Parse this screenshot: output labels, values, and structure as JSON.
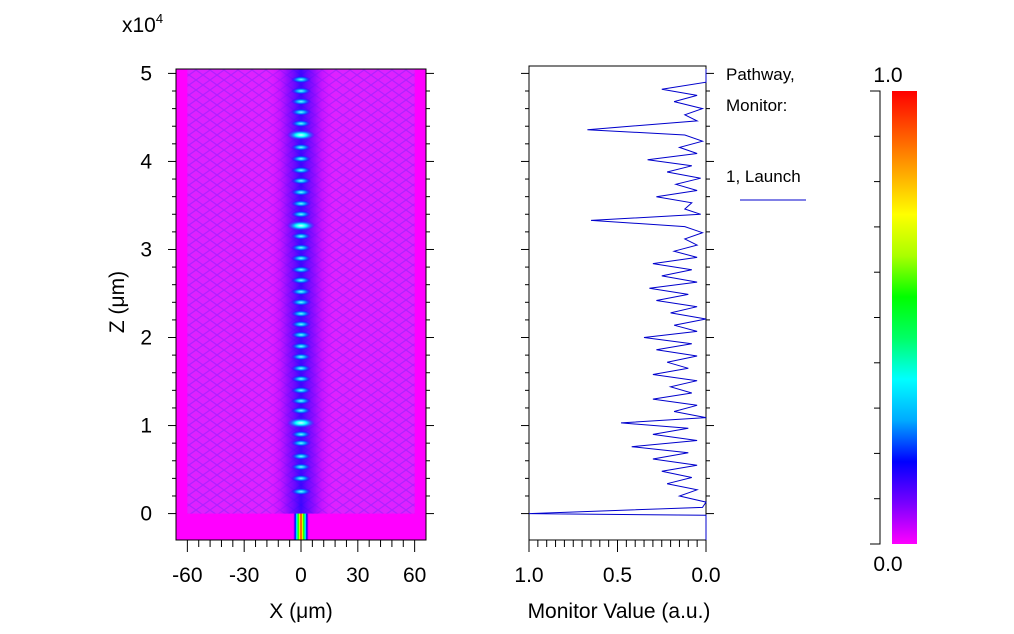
{
  "chart_data": [
    {
      "type": "heatmap",
      "title": "",
      "xlabel": "X (μm)",
      "ylabel": "Z (μm)",
      "y_multiplier": "x10",
      "y_multiplier_exp": "4",
      "xlim": [
        -66,
        66
      ],
      "ylim": [
        -3000,
        50500
      ],
      "xticks": [
        "-60",
        "-30",
        "0",
        "30",
        "60"
      ],
      "xtick_values": [
        -60,
        -30,
        0,
        30,
        60
      ],
      "yticks": [
        "0",
        "1",
        "2",
        "3",
        "4",
        "5"
      ],
      "ytick_values": [
        0,
        10000,
        20000,
        30000,
        40000,
        50000
      ],
      "launch_field": {
        "z_start": -3000,
        "z_end": 0,
        "center_x": 0,
        "halfwidth": 4
      },
      "intensity_spots_z": [
        2500,
        4000,
        5300,
        6500,
        8000,
        9000,
        10300,
        11700,
        12800,
        14000,
        15300,
        16500,
        17800,
        19000,
        20300,
        21500,
        22700,
        24000,
        25200,
        26500,
        27700,
        29000,
        30200,
        31500,
        32700,
        34000,
        35200,
        36500,
        37800,
        39000,
        40300,
        41600,
        43000,
        44300,
        45600,
        46800,
        48000,
        49300
      ],
      "bright_spots_z": [
        10300,
        33300,
        43600
      ]
    },
    {
      "type": "line",
      "xlabel": "Monitor Value (a.u.)",
      "xlim": [
        1.0,
        0.0
      ],
      "ylim": [
        -3000,
        50500
      ],
      "xticks": [
        "1.0",
        "0.5",
        "0.0"
      ],
      "xtick_values": [
        1.0,
        0.5,
        0.0
      ],
      "legend_title": [
        "Pathway,",
        "Monitor:"
      ],
      "series": [
        {
          "name": "1, Launch",
          "color": "#0000cc",
          "points": [
            [
              0,
              50500
            ],
            [
              0.0,
              49000
            ],
            [
              0.25,
              48200
            ],
            [
              0.05,
              47500
            ],
            [
              0.18,
              46800
            ],
            [
              0.02,
              46000
            ],
            [
              0.12,
              45300
            ],
            [
              0.05,
              44600
            ],
            [
              0.67,
              43600
            ],
            [
              0.12,
              43000
            ],
            [
              0.02,
              42300
            ],
            [
              0.15,
              41600
            ],
            [
              0.05,
              40900
            ],
            [
              0.33,
              40200
            ],
            [
              0.08,
              39500
            ],
            [
              0.22,
              38800
            ],
            [
              0.03,
              38100
            ],
            [
              0.17,
              37400
            ],
            [
              0.05,
              36700
            ],
            [
              0.28,
              36000
            ],
            [
              0.08,
              35300
            ],
            [
              0.12,
              34600
            ],
            [
              0.03,
              34000
            ],
            [
              0.65,
              33300
            ],
            [
              0.12,
              32600
            ],
            [
              0.02,
              31900
            ],
            [
              0.12,
              31200
            ],
            [
              0.05,
              30500
            ],
            [
              0.18,
              29800
            ],
            [
              0.05,
              29100
            ],
            [
              0.3,
              28400
            ],
            [
              0.08,
              27700
            ],
            [
              0.25,
              27000
            ],
            [
              0.05,
              26300
            ],
            [
              0.32,
              25600
            ],
            [
              0.1,
              24900
            ],
            [
              0.28,
              24200
            ],
            [
              0.05,
              23500
            ],
            [
              0.2,
              22800
            ],
            [
              0.0,
              22100
            ],
            [
              0.18,
              21400
            ],
            [
              0.05,
              20700
            ],
            [
              0.35,
              20000
            ],
            [
              0.08,
              19300
            ],
            [
              0.28,
              18600
            ],
            [
              0.05,
              17900
            ],
            [
              0.22,
              17200
            ],
            [
              0.1,
              16500
            ],
            [
              0.3,
              15800
            ],
            [
              0.05,
              15100
            ],
            [
              0.2,
              14400
            ],
            [
              0.08,
              13700
            ],
            [
              0.3,
              13000
            ],
            [
              0.05,
              12300
            ],
            [
              0.18,
              11600
            ],
            [
              0.0,
              10900
            ],
            [
              0.48,
              10300
            ],
            [
              0.1,
              9700
            ],
            [
              0.3,
              9000
            ],
            [
              0.05,
              8300
            ],
            [
              0.42,
              7600
            ],
            [
              0.1,
              6900
            ],
            [
              0.3,
              6200
            ],
            [
              0.05,
              5500
            ],
            [
              0.25,
              4800
            ],
            [
              0.08,
              4100
            ],
            [
              0.22,
              3400
            ],
            [
              0.05,
              2700
            ],
            [
              0.15,
              2000
            ],
            [
              0.0,
              1300
            ],
            [
              0.02,
              700
            ],
            [
              1.0,
              0
            ],
            [
              0.0,
              -200
            ],
            [
              0.0,
              -3000
            ]
          ]
        }
      ]
    },
    {
      "type": "colorbar",
      "min_label": "0.0",
      "max_label": "1.0",
      "colormap": [
        "#ff00ff",
        "#7700ff",
        "#0000ff",
        "#00aaff",
        "#00ffff",
        "#00ff66",
        "#00ff00",
        "#aaff00",
        "#ffff00",
        "#ffaa00",
        "#ff5500",
        "#ff0000"
      ]
    }
  ]
}
